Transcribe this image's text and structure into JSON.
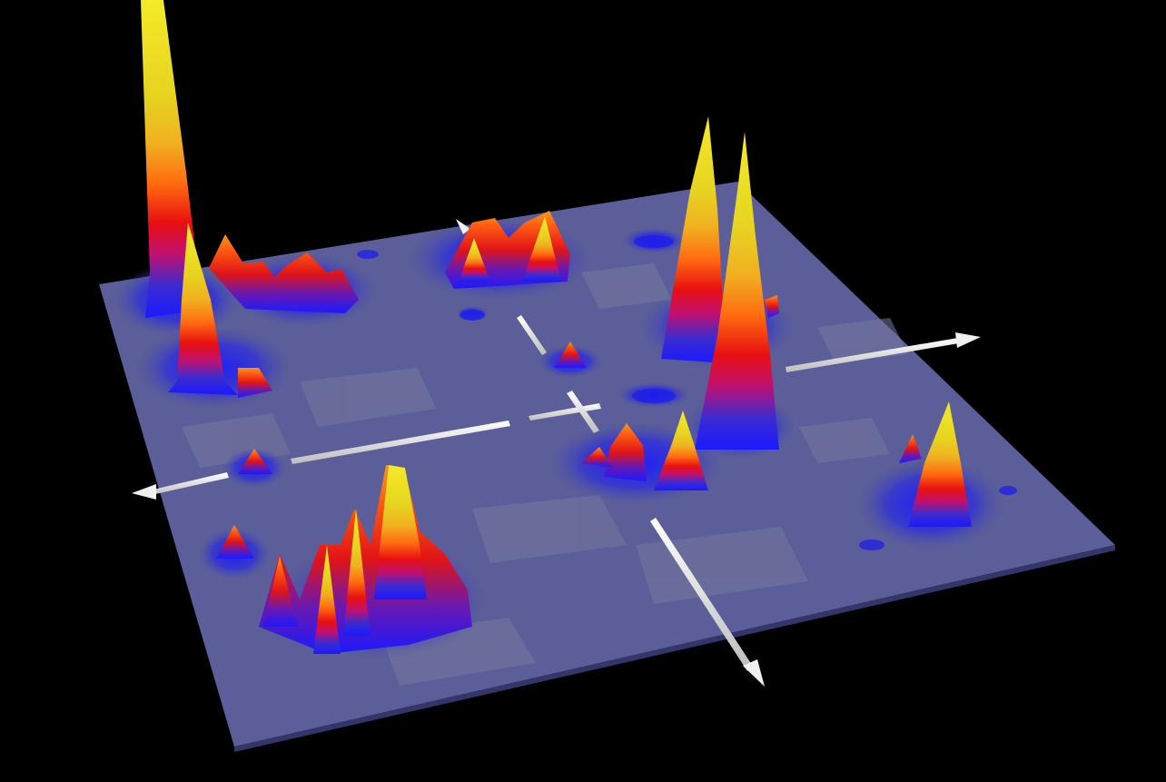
{
  "scene": {
    "description_free": true,
    "background_color": "#000000",
    "plane_color": "#5a5d96",
    "plane_light_color": "#7a7a9a",
    "colormap": [
      "#3b3bd6",
      "#1a1aff",
      "#a0149a",
      "#e01010",
      "#ff6a10",
      "#f0a020",
      "#e6d020",
      "#f2e622"
    ],
    "axis_color": "#f0f0f0",
    "axes": [
      "x-axis",
      "y-axis"
    ],
    "peak_count": 16
  }
}
